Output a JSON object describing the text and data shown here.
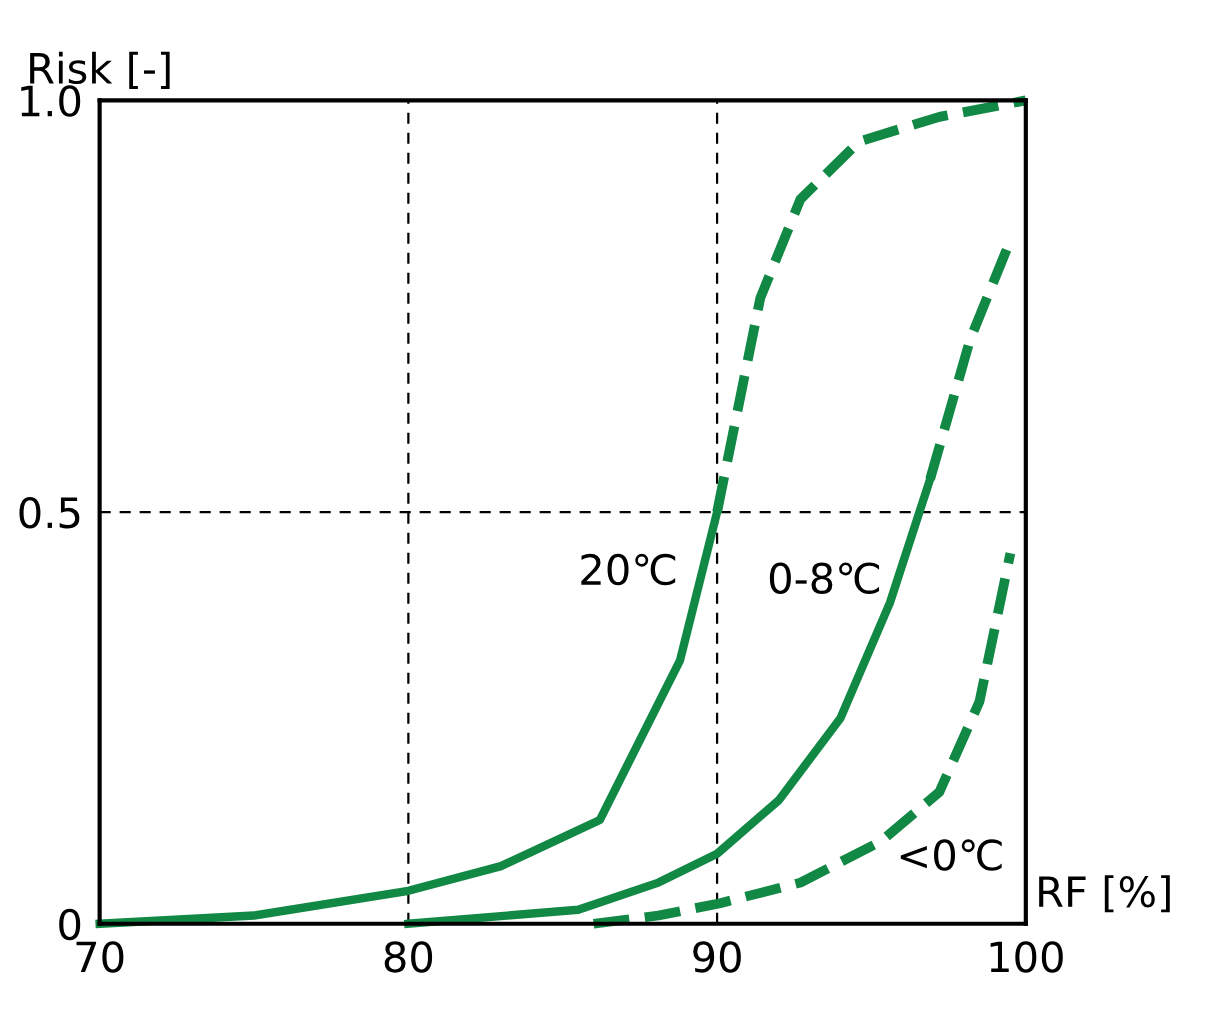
{
  "chart_data": {
    "type": "line",
    "xlabel": "RF [%]",
    "ylabel": "Risk [-]",
    "xlim": [
      70,
      100
    ],
    "ylim": [
      0,
      1.0
    ],
    "xticks": [
      70,
      80,
      90,
      100
    ],
    "yticks": [
      0,
      0.5,
      {
        "value": 1.0,
        "label": "1.0"
      }
    ],
    "grid": true,
    "marker": "none",
    "series": [
      {
        "name": "20℃",
        "color": "#118844",
        "line_style": "solid",
        "x": [
          70,
          75,
          80,
          83,
          86.2,
          88.8,
          90
        ],
        "values": [
          0.0,
          0.01,
          0.04,
          0.07,
          0.126,
          0.32,
          0.5
        ]
      },
      {
        "color": "#118844",
        "line_style": "dashed",
        "x": [
          90,
          91.4,
          92.7,
          94.6,
          97.2,
          100
        ],
        "values": [
          0.5,
          0.76,
          0.88,
          0.95,
          0.98,
          1.0
        ]
      },
      {
        "name": "0-8℃",
        "color": "#118844",
        "line_style": "solid",
        "x": [
          80,
          85.5,
          88.1,
          90,
          92,
          94,
          95.6,
          96.9
        ],
        "values": [
          0.0,
          0.017,
          0.05,
          0.085,
          0.15,
          0.25,
          0.39,
          0.54
        ]
      },
      {
        "color": "#118844",
        "line_style": "dashed",
        "x": [
          96.9,
          98.2,
          99.5
        ],
        "values": [
          0.54,
          0.71,
          0.83
        ]
      },
      {
        "name": "<0℃",
        "color": "#118844",
        "line_style": "dashed",
        "x": [
          86,
          88.1,
          90.1,
          92.7,
          95.3,
          97.2,
          98.5,
          99.5
        ],
        "values": [
          0.0,
          0.01,
          0.025,
          0.05,
          0.1,
          0.16,
          0.27,
          0.45
        ]
      }
    ]
  }
}
